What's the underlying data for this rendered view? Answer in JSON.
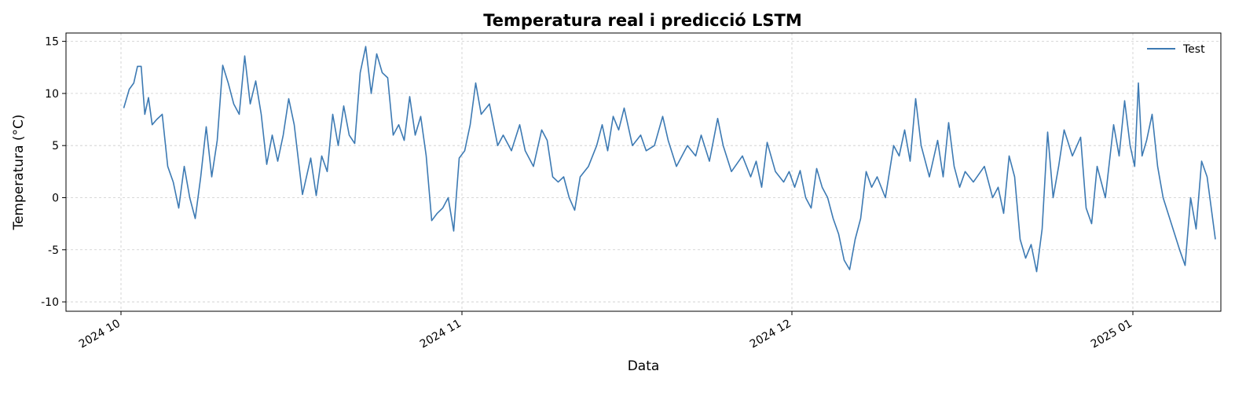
{
  "chart_data": {
    "type": "line",
    "title": "Temperatura real i predicció LSTM",
    "xlabel": "Data",
    "ylabel": "Temperatura (°C)",
    "xlim": [
      "2024-09-26",
      "2025-01-09"
    ],
    "ylim": [
      -10.9,
      15.8
    ],
    "x_ticks": [
      {
        "date": "2024-10-01",
        "label": "2024 10"
      },
      {
        "date": "2024-11-01",
        "label": "2024 11"
      },
      {
        "date": "2024-12-01",
        "label": "2024 12"
      },
      {
        "date": "2025-01-01",
        "label": "2025 01"
      }
    ],
    "y_ticks": [
      -10,
      -5,
      0,
      5,
      10,
      15
    ],
    "grid": true,
    "legend": {
      "position": "top-right",
      "entries": [
        "Test"
      ]
    },
    "series": [
      {
        "name": "Test",
        "color": "#3d7ab3",
        "points": [
          [
            "2024-10-01",
            8.6
          ],
          [
            "2024-10-01",
            10.4
          ],
          [
            "2024-10-02",
            11.0
          ],
          [
            "2024-10-02",
            12.6
          ],
          [
            "2024-10-02",
            12.6
          ],
          [
            "2024-10-03",
            8.0
          ],
          [
            "2024-10-03",
            9.6
          ],
          [
            "2024-10-03",
            7.0
          ],
          [
            "2024-10-04",
            7.5
          ],
          [
            "2024-10-04",
            8.0
          ],
          [
            "2024-10-05",
            3.0
          ],
          [
            "2024-10-05",
            1.5
          ],
          [
            "2024-10-06",
            -1.0
          ],
          [
            "2024-10-06",
            3.0
          ],
          [
            "2024-10-07",
            0.0
          ],
          [
            "2024-10-07",
            -2.0
          ],
          [
            "2024-10-08",
            2.0
          ],
          [
            "2024-10-08",
            6.8
          ],
          [
            "2024-10-09",
            2.0
          ],
          [
            "2024-10-09",
            5.5
          ],
          [
            "2024-10-10",
            12.7
          ],
          [
            "2024-10-10",
            11.0
          ],
          [
            "2024-10-11",
            9.0
          ],
          [
            "2024-10-11",
            8.0
          ],
          [
            "2024-10-12",
            13.6
          ],
          [
            "2024-10-12",
            9.0
          ],
          [
            "2024-10-13",
            11.2
          ],
          [
            "2024-10-13",
            8.0
          ],
          [
            "2024-10-14",
            3.2
          ],
          [
            "2024-10-14",
            6.0
          ],
          [
            "2024-10-15",
            3.5
          ],
          [
            "2024-10-15",
            6.0
          ],
          [
            "2024-10-16",
            9.5
          ],
          [
            "2024-10-16",
            7.0
          ],
          [
            "2024-10-17",
            0.3
          ],
          [
            "2024-10-18",
            3.8
          ],
          [
            "2024-10-18",
            0.2
          ],
          [
            "2024-10-19",
            4.0
          ],
          [
            "2024-10-19",
            2.5
          ],
          [
            "2024-10-20",
            8.0
          ],
          [
            "2024-10-20",
            5.0
          ],
          [
            "2024-10-21",
            8.8
          ],
          [
            "2024-10-21",
            6.0
          ],
          [
            "2024-10-22",
            5.2
          ],
          [
            "2024-10-22",
            12.0
          ],
          [
            "2024-10-23",
            14.5
          ],
          [
            "2024-10-23",
            10.0
          ],
          [
            "2024-10-24",
            13.8
          ],
          [
            "2024-10-24",
            12.0
          ],
          [
            "2024-10-25",
            11.5
          ],
          [
            "2024-10-25",
            6.0
          ],
          [
            "2024-10-26",
            7.0
          ],
          [
            "2024-10-26",
            5.5
          ],
          [
            "2024-10-27",
            9.7
          ],
          [
            "2024-10-27",
            6.0
          ],
          [
            "2024-10-28",
            7.8
          ],
          [
            "2024-10-28",
            4.0
          ],
          [
            "2024-10-29",
            -2.2
          ],
          [
            "2024-10-29",
            -1.5
          ],
          [
            "2024-10-30",
            -1.0
          ],
          [
            "2024-10-30",
            0.0
          ],
          [
            "2024-10-31",
            -3.2
          ],
          [
            "2024-10-31",
            3.8
          ],
          [
            "2024-11-01",
            4.5
          ],
          [
            "2024-11-01",
            7.0
          ],
          [
            "2024-11-02",
            11.0
          ],
          [
            "2024-11-02",
            8.0
          ],
          [
            "2024-11-03",
            9.0
          ],
          [
            "2024-11-04",
            5.0
          ],
          [
            "2024-11-04",
            6.0
          ],
          [
            "2024-11-05",
            4.5
          ],
          [
            "2024-11-06",
            7.0
          ],
          [
            "2024-11-06",
            4.5
          ],
          [
            "2024-11-07",
            3.0
          ],
          [
            "2024-11-08",
            6.5
          ],
          [
            "2024-11-08",
            5.5
          ],
          [
            "2024-11-09",
            2.0
          ],
          [
            "2024-11-09",
            1.5
          ],
          [
            "2024-11-10",
            2.0
          ],
          [
            "2024-11-10",
            0.0
          ],
          [
            "2024-11-11",
            -1.2
          ],
          [
            "2024-11-11",
            2.0
          ],
          [
            "2024-11-12",
            3.0
          ],
          [
            "2024-11-13",
            5.0
          ],
          [
            "2024-11-13",
            7.0
          ],
          [
            "2024-11-14",
            4.5
          ],
          [
            "2024-11-14",
            7.8
          ],
          [
            "2024-11-15",
            6.5
          ],
          [
            "2024-11-15",
            8.6
          ],
          [
            "2024-11-16",
            5.0
          ],
          [
            "2024-11-17",
            6.0
          ],
          [
            "2024-11-17",
            4.5
          ],
          [
            "2024-11-18",
            5.0
          ],
          [
            "2024-11-19",
            7.8
          ],
          [
            "2024-11-19",
            5.5
          ],
          [
            "2024-11-20",
            3.0
          ],
          [
            "2024-11-21",
            5.0
          ],
          [
            "2024-11-22",
            4.0
          ],
          [
            "2024-11-22",
            6.0
          ],
          [
            "2024-11-23",
            3.5
          ],
          [
            "2024-11-24",
            7.6
          ],
          [
            "2024-11-24",
            5.0
          ],
          [
            "2024-11-25",
            2.5
          ],
          [
            "2024-11-26",
            4.0
          ],
          [
            "2024-11-27",
            2.0
          ],
          [
            "2024-11-27",
            3.5
          ],
          [
            "2024-11-28",
            1.0
          ],
          [
            "2024-11-28",
            5.3
          ],
          [
            "2024-11-29",
            2.5
          ],
          [
            "2024-11-30",
            1.5
          ],
          [
            "2024-11-30",
            2.5
          ],
          [
            "2024-12-01",
            1.0
          ],
          [
            "2024-12-01",
            2.6
          ],
          [
            "2024-12-02",
            0.0
          ],
          [
            "2024-12-02",
            -1.0
          ],
          [
            "2024-12-03",
            2.8
          ],
          [
            "2024-12-03",
            1.0
          ],
          [
            "2024-12-04",
            0.0
          ],
          [
            "2024-12-04",
            -2.0
          ],
          [
            "2024-12-05",
            -3.5
          ],
          [
            "2024-12-05",
            -6.0
          ],
          [
            "2024-12-06",
            -6.9
          ],
          [
            "2024-12-06",
            -4.0
          ],
          [
            "2024-12-07",
            -2.0
          ],
          [
            "2024-12-07",
            2.5
          ],
          [
            "2024-12-08",
            1.0
          ],
          [
            "2024-12-08",
            2.0
          ],
          [
            "2024-12-09",
            0.0
          ],
          [
            "2024-12-10",
            5.0
          ],
          [
            "2024-12-10",
            4.0
          ],
          [
            "2024-12-11",
            6.5
          ],
          [
            "2024-12-11",
            3.5
          ],
          [
            "2024-12-12",
            9.5
          ],
          [
            "2024-12-12",
            5.0
          ],
          [
            "2024-12-13",
            2.0
          ],
          [
            "2024-12-14",
            5.5
          ],
          [
            "2024-12-14",
            2.0
          ],
          [
            "2024-12-15",
            7.2
          ],
          [
            "2024-12-15",
            3.0
          ],
          [
            "2024-12-16",
            1.0
          ],
          [
            "2024-12-16",
            2.5
          ],
          [
            "2024-12-17",
            1.5
          ],
          [
            "2024-12-18",
            3.0
          ],
          [
            "2024-12-19",
            0.0
          ],
          [
            "2024-12-19",
            1.0
          ],
          [
            "2024-12-20",
            -1.5
          ],
          [
            "2024-12-20",
            4.0
          ],
          [
            "2024-12-21",
            2.0
          ],
          [
            "2024-12-21",
            -4.0
          ],
          [
            "2024-12-22",
            -5.8
          ],
          [
            "2024-12-22",
            -4.5
          ],
          [
            "2024-12-23",
            -7.1
          ],
          [
            "2024-12-23",
            -3.0
          ],
          [
            "2024-12-24",
            6.3
          ],
          [
            "2024-12-24",
            0.0
          ],
          [
            "2024-12-25",
            3.0
          ],
          [
            "2024-12-25",
            6.5
          ],
          [
            "2024-12-26",
            4.0
          ],
          [
            "2024-12-27",
            5.8
          ],
          [
            "2024-12-27",
            -1.0
          ],
          [
            "2024-12-28",
            -2.5
          ],
          [
            "2024-12-28",
            3.0
          ],
          [
            "2024-12-29",
            0.0
          ],
          [
            "2024-12-30",
            7.0
          ],
          [
            "2024-12-30",
            4.0
          ],
          [
            "2024-12-31",
            9.3
          ],
          [
            "2024-12-31",
            5.0
          ],
          [
            "2025-01-01",
            3.0
          ],
          [
            "2025-01-01",
            11.0
          ],
          [
            "2025-01-01",
            4.0
          ],
          [
            "2025-01-02",
            5.5
          ],
          [
            "2025-01-02",
            8.0
          ],
          [
            "2025-01-03",
            3.0
          ],
          [
            "2025-01-03",
            0.0
          ],
          [
            "2025-01-04",
            -2.5
          ],
          [
            "2025-01-05",
            -5.0
          ],
          [
            "2025-01-05",
            -6.5
          ],
          [
            "2025-01-06",
            0.0
          ],
          [
            "2025-01-06",
            -3.0
          ],
          [
            "2025-01-07",
            3.5
          ],
          [
            "2025-01-07",
            2.0
          ],
          [
            "2025-01-08",
            -4.0
          ]
        ]
      }
    ]
  }
}
